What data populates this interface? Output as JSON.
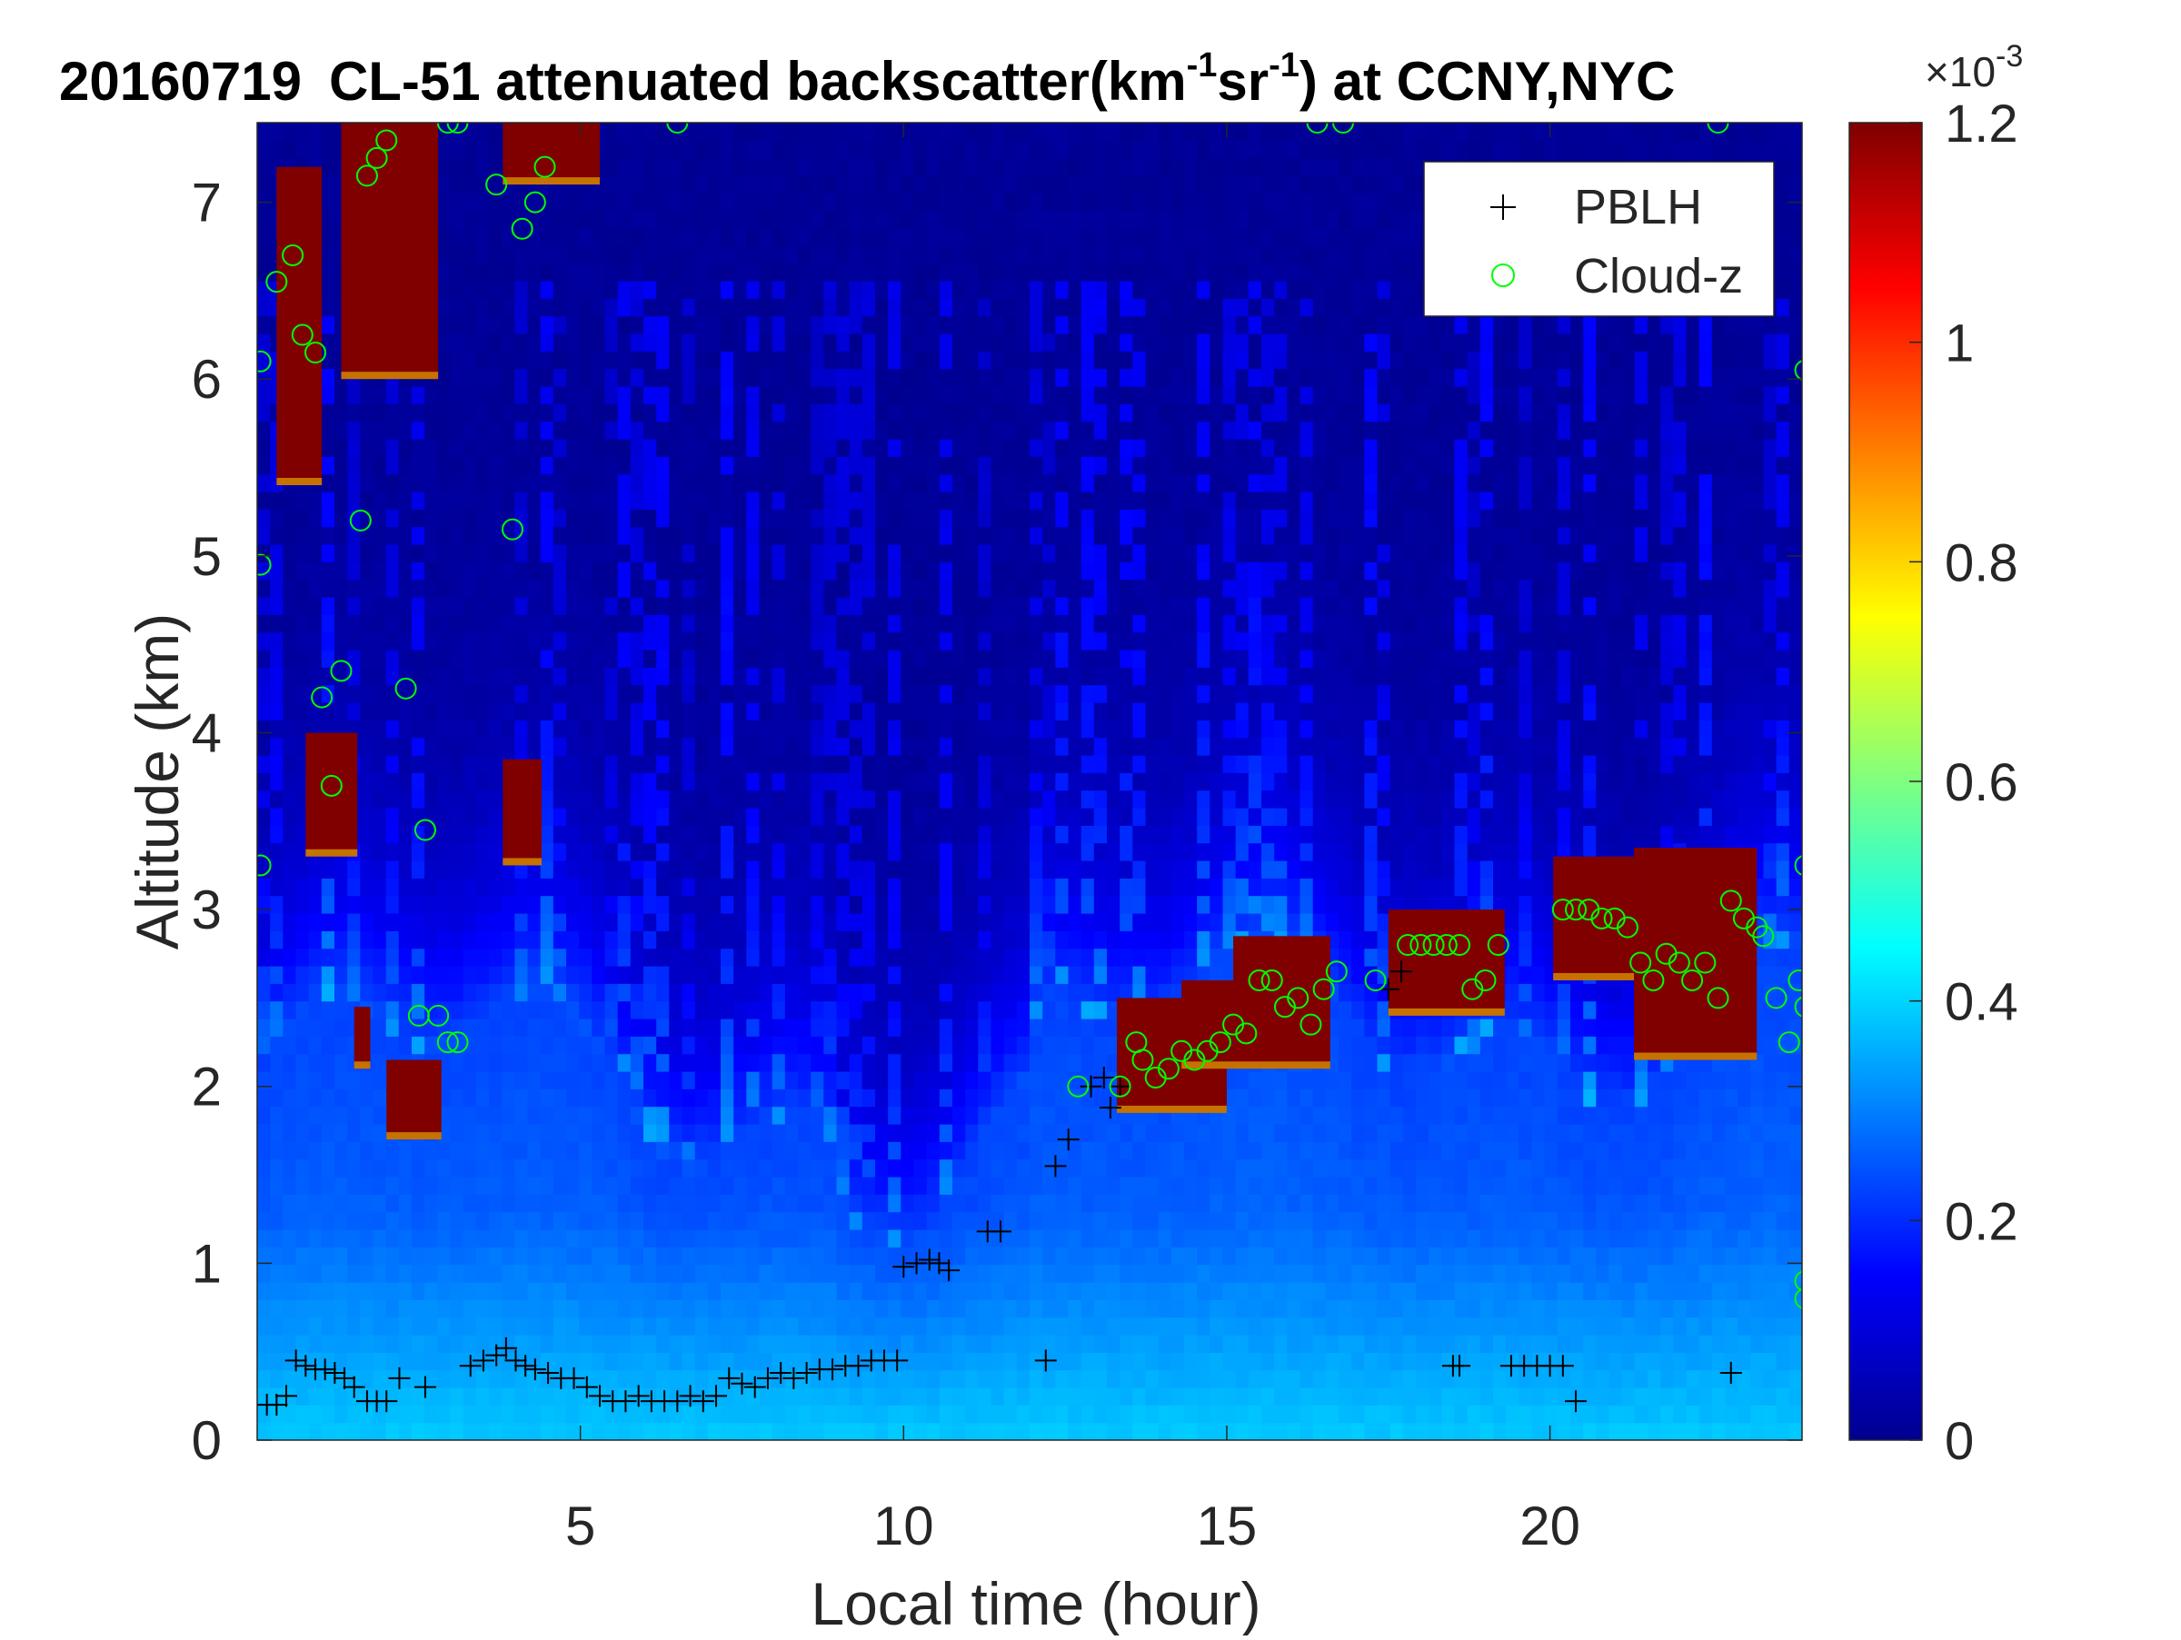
{
  "chart_data": {
    "type": "heatmap",
    "date": "20160719",
    "title_main": "CL-51 attenuated backscatter(km",
    "title_exp1": "-1",
    "title_mid": "sr",
    "title_exp2": "-1",
    "title_tail": ") at CCNY,NYC",
    "xlabel": "Local time (hour)",
    "ylabel": "Altitude (km)",
    "xlim": [
      0,
      23.9
    ],
    "ylim": [
      0,
      7.45
    ],
    "x_ticks": [
      5,
      10,
      15,
      20
    ],
    "y_ticks": [
      0,
      1,
      2,
      3,
      4,
      5,
      6,
      7
    ],
    "colorbar": {
      "colormap": "jet",
      "range": [
        0,
        1.2
      ],
      "ticks": [
        0,
        0.2,
        0.4,
        0.6,
        0.8,
        1.0,
        1.2
      ],
      "tick_labels": [
        "0",
        "0.2",
        "0.4",
        "0.6",
        "0.8",
        "1",
        "1.2"
      ],
      "scale_base": "×10",
      "scale_exp": "-3",
      "units": "km^-1 sr^-1"
    },
    "legend": {
      "position": "top-right",
      "entries": [
        {
          "label": "PBLH",
          "marker": "+",
          "color": "#000000"
        },
        {
          "label": "Cloud-z",
          "marker": "o",
          "color": "#00ff00"
        }
      ]
    },
    "cloud_regions": [
      {
        "t0": 0.3,
        "t1": 1.0,
        "z0": 5.4,
        "z1": 7.2
      },
      {
        "t0": 1.3,
        "t1": 2.8,
        "z0": 6.0,
        "z1": 7.45
      },
      {
        "t0": 0.75,
        "t1": 1.55,
        "z0": 3.3,
        "z1": 4.0
      },
      {
        "t0": 1.5,
        "t1": 1.75,
        "z0": 2.1,
        "z1": 2.45
      },
      {
        "t0": 2.0,
        "t1": 2.85,
        "z0": 1.7,
        "z1": 2.15
      },
      {
        "t0": 3.8,
        "t1": 5.3,
        "z0": 7.1,
        "z1": 7.45
      },
      {
        "t0": 3.8,
        "t1": 4.4,
        "z0": 3.25,
        "z1": 3.85
      },
      {
        "t0": 13.3,
        "t1": 15.0,
        "z0": 1.85,
        "z1": 2.5
      },
      {
        "t0": 14.3,
        "t1": 15.1,
        "z0": 2.1,
        "z1": 2.6
      },
      {
        "t0": 15.1,
        "t1": 16.6,
        "z0": 2.1,
        "z1": 2.85
      },
      {
        "t0": 17.5,
        "t1": 19.3,
        "z0": 2.4,
        "z1": 3.0
      },
      {
        "t0": 20.05,
        "t1": 21.3,
        "z0": 2.6,
        "z1": 3.3
      },
      {
        "t0": 21.3,
        "t1": 23.2,
        "z0": 2.15,
        "z1": 3.35
      }
    ],
    "pblh_points": [
      [
        0.15,
        0.2
      ],
      [
        0.3,
        0.2
      ],
      [
        0.45,
        0.25
      ],
      [
        0.6,
        0.45
      ],
      [
        0.75,
        0.42
      ],
      [
        0.9,
        0.4
      ],
      [
        1.05,
        0.4
      ],
      [
        1.2,
        0.38
      ],
      [
        1.35,
        0.35
      ],
      [
        1.5,
        0.3
      ],
      [
        1.7,
        0.22
      ],
      [
        1.85,
        0.22
      ],
      [
        2.0,
        0.22
      ],
      [
        2.2,
        0.35
      ],
      [
        2.6,
        0.3
      ],
      [
        3.3,
        0.42
      ],
      [
        3.5,
        0.45
      ],
      [
        3.7,
        0.48
      ],
      [
        3.85,
        0.52
      ],
      [
        4.0,
        0.45
      ],
      [
        4.15,
        0.42
      ],
      [
        4.3,
        0.4
      ],
      [
        4.5,
        0.38
      ],
      [
        4.7,
        0.35
      ],
      [
        4.9,
        0.35
      ],
      [
        5.1,
        0.3
      ],
      [
        5.3,
        0.25
      ],
      [
        5.5,
        0.22
      ],
      [
        5.7,
        0.22
      ],
      [
        5.9,
        0.25
      ],
      [
        6.1,
        0.22
      ],
      [
        6.3,
        0.22
      ],
      [
        6.5,
        0.22
      ],
      [
        6.7,
        0.25
      ],
      [
        6.9,
        0.22
      ],
      [
        7.1,
        0.25
      ],
      [
        7.3,
        0.35
      ],
      [
        7.5,
        0.32
      ],
      [
        7.7,
        0.3
      ],
      [
        7.9,
        0.35
      ],
      [
        8.1,
        0.38
      ],
      [
        8.3,
        0.35
      ],
      [
        8.5,
        0.38
      ],
      [
        8.7,
        0.4
      ],
      [
        8.9,
        0.4
      ],
      [
        9.1,
        0.42
      ],
      [
        9.3,
        0.42
      ],
      [
        9.5,
        0.45
      ],
      [
        9.7,
        0.45
      ],
      [
        9.9,
        0.45
      ],
      [
        10.0,
        0.98
      ],
      [
        10.2,
        1.0
      ],
      [
        10.4,
        1.02
      ],
      [
        10.55,
        1.0
      ],
      [
        10.7,
        0.96
      ],
      [
        11.3,
        1.18
      ],
      [
        11.5,
        1.18
      ],
      [
        12.2,
        0.45
      ],
      [
        12.35,
        1.55
      ],
      [
        12.55,
        1.7
      ],
      [
        12.9,
        2.0
      ],
      [
        13.1,
        2.05
      ],
      [
        13.2,
        1.88
      ],
      [
        13.35,
        2.0
      ],
      [
        17.5,
        2.55
      ],
      [
        17.7,
        2.65
      ],
      [
        18.5,
        0.42
      ],
      [
        18.6,
        0.42
      ],
      [
        19.4,
        0.42
      ],
      [
        19.6,
        0.42
      ],
      [
        19.8,
        0.42
      ],
      [
        20.0,
        0.42
      ],
      [
        20.2,
        0.42
      ],
      [
        20.4,
        0.22
      ],
      [
        22.8,
        0.38
      ]
    ],
    "cloud_points": [
      [
        0.05,
        6.1
      ],
      [
        0.05,
        4.95
      ],
      [
        0.05,
        3.25
      ],
      [
        0.3,
        6.55
      ],
      [
        0.55,
        6.7
      ],
      [
        0.7,
        6.25
      ],
      [
        0.9,
        6.15
      ],
      [
        1.6,
        5.2
      ],
      [
        1.0,
        4.2
      ],
      [
        1.3,
        4.35
      ],
      [
        1.15,
        3.7
      ],
      [
        1.7,
        7.15
      ],
      [
        1.85,
        7.25
      ],
      [
        2.0,
        7.35
      ],
      [
        2.3,
        4.25
      ],
      [
        2.6,
        3.45
      ],
      [
        2.95,
        7.45
      ],
      [
        3.1,
        7.45
      ],
      [
        2.5,
        2.4
      ],
      [
        2.8,
        2.4
      ],
      [
        2.95,
        2.25
      ],
      [
        3.1,
        2.25
      ],
      [
        3.7,
        7.1
      ],
      [
        3.95,
        5.15
      ],
      [
        4.1,
        6.85
      ],
      [
        4.3,
        7.0
      ],
      [
        4.45,
        7.2
      ],
      [
        6.5,
        7.45
      ],
      [
        12.7,
        2.0
      ],
      [
        13.35,
        2.0
      ],
      [
        13.6,
        2.25
      ],
      [
        13.7,
        2.15
      ],
      [
        13.9,
        2.05
      ],
      [
        14.1,
        2.1
      ],
      [
        14.3,
        2.2
      ],
      [
        14.5,
        2.15
      ],
      [
        14.7,
        2.2
      ],
      [
        14.9,
        2.25
      ],
      [
        15.1,
        2.35
      ],
      [
        15.3,
        2.3
      ],
      [
        15.5,
        2.6
      ],
      [
        15.7,
        2.6
      ],
      [
        15.9,
        2.45
      ],
      [
        16.1,
        2.5
      ],
      [
        16.3,
        2.35
      ],
      [
        16.5,
        2.55
      ],
      [
        16.7,
        2.65
      ],
      [
        17.3,
        2.6
      ],
      [
        17.8,
        2.8
      ],
      [
        18.0,
        2.8
      ],
      [
        18.2,
        2.8
      ],
      [
        18.4,
        2.8
      ],
      [
        18.6,
        2.8
      ],
      [
        18.8,
        2.55
      ],
      [
        19.0,
        2.6
      ],
      [
        19.2,
        2.8
      ],
      [
        20.2,
        3.0
      ],
      [
        20.4,
        3.0
      ],
      [
        20.6,
        3.0
      ],
      [
        20.8,
        2.95
      ],
      [
        21.0,
        2.95
      ],
      [
        21.2,
        2.9
      ],
      [
        21.4,
        2.7
      ],
      [
        21.6,
        2.6
      ],
      [
        21.8,
        2.75
      ],
      [
        22.0,
        2.7
      ],
      [
        22.2,
        2.6
      ],
      [
        22.4,
        2.7
      ],
      [
        22.6,
        2.5
      ],
      [
        22.8,
        3.05
      ],
      [
        23.0,
        2.95
      ],
      [
        23.2,
        2.9
      ],
      [
        23.3,
        2.85
      ],
      [
        23.5,
        2.5
      ],
      [
        23.7,
        2.25
      ],
      [
        23.85,
        2.6
      ],
      [
        23.95,
        3.25
      ],
      [
        23.95,
        2.45
      ],
      [
        23.95,
        6.05
      ],
      [
        23.95,
        0.9
      ],
      [
        23.95,
        0.8
      ],
      [
        16.4,
        7.45
      ],
      [
        16.8,
        7.45
      ],
      [
        22.6,
        7.45
      ]
    ]
  }
}
